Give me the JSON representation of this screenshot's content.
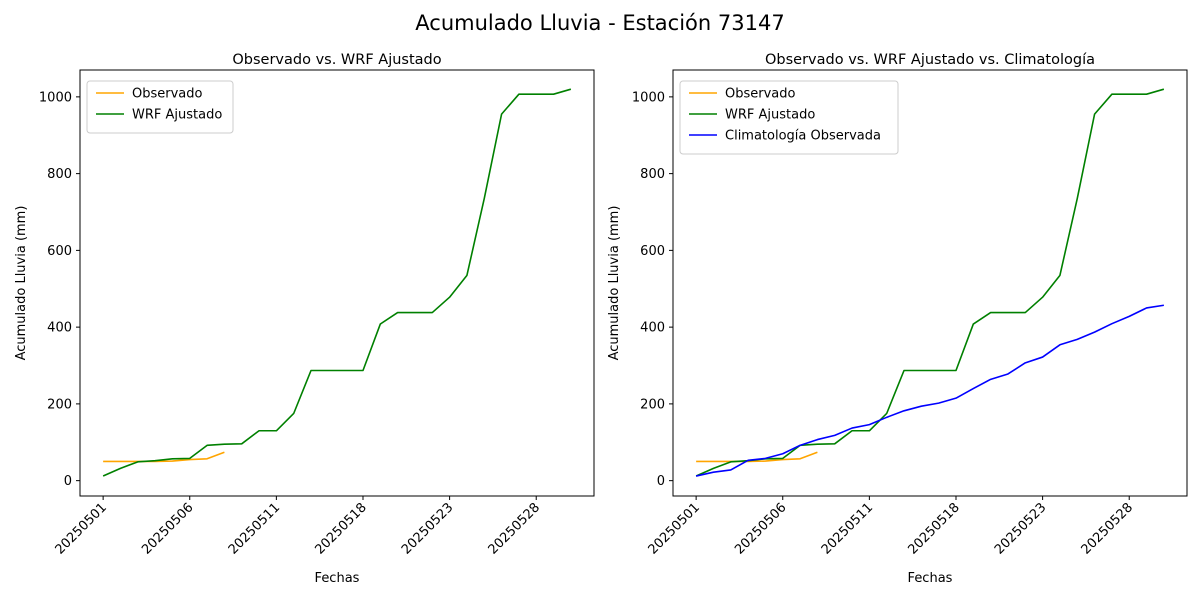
{
  "suptitle": "Acumulado Lluvia - Estación 73147",
  "colors": {
    "observado": "#ffa500",
    "wrf": "#008000",
    "climatologia": "#0000ff"
  },
  "chart_data": [
    {
      "type": "line",
      "title": "Observado vs. WRF Ajustado",
      "xlabel": "Fechas",
      "ylabel": "Acumulado Lluvia (mm)",
      "x_tick_labels": [
        "20250501",
        "20250506",
        "20250511",
        "20250518",
        "20250523",
        "20250528"
      ],
      "y_ticks": [
        0,
        200,
        400,
        600,
        800,
        1000
      ],
      "ylim": [
        -40,
        1070
      ],
      "grid": false,
      "legend": "upper-left",
      "series": [
        {
          "name": "Observado",
          "color": "#ffa500",
          "values": [
            50,
            50,
            50,
            50,
            51,
            55,
            57,
            74
          ]
        },
        {
          "name": "WRF Ajustado",
          "color": "#008000",
          "values": [
            12,
            32,
            49,
            52,
            57,
            58,
            92,
            95,
            96,
            130,
            130,
            175,
            287,
            287,
            287,
            287,
            408,
            438,
            438,
            438,
            478,
            535,
            735,
            955,
            1007,
            1007,
            1007,
            1020
          ]
        }
      ]
    },
    {
      "type": "line",
      "title": "Observado vs. WRF Ajustado vs. Climatología",
      "xlabel": "Fechas",
      "ylabel": "Acumulado Lluvia (mm)",
      "x_tick_labels": [
        "20250501",
        "20250506",
        "20250511",
        "20250518",
        "20250523",
        "20250528"
      ],
      "y_ticks": [
        0,
        200,
        400,
        600,
        800,
        1000
      ],
      "ylim": [
        -40,
        1070
      ],
      "grid": false,
      "legend": "upper-left",
      "series": [
        {
          "name": "Observado",
          "color": "#ffa500",
          "values": [
            50,
            50,
            50,
            50,
            51,
            55,
            57,
            74
          ]
        },
        {
          "name": "WRF Ajustado",
          "color": "#008000",
          "values": [
            12,
            32,
            49,
            52,
            57,
            58,
            92,
            95,
            96,
            130,
            130,
            175,
            287,
            287,
            287,
            287,
            408,
            438,
            438,
            438,
            478,
            535,
            735,
            955,
            1007,
            1007,
            1007,
            1020
          ]
        },
        {
          "name": "Climatología Observada",
          "color": "#0000ff",
          "values": [
            12,
            22,
            28,
            53,
            58,
            70,
            92,
            107,
            118,
            137,
            146,
            165,
            182,
            194,
            202,
            215,
            240,
            264,
            278,
            307,
            322,
            354,
            368,
            387,
            409,
            428,
            450,
            457
          ]
        }
      ]
    }
  ]
}
